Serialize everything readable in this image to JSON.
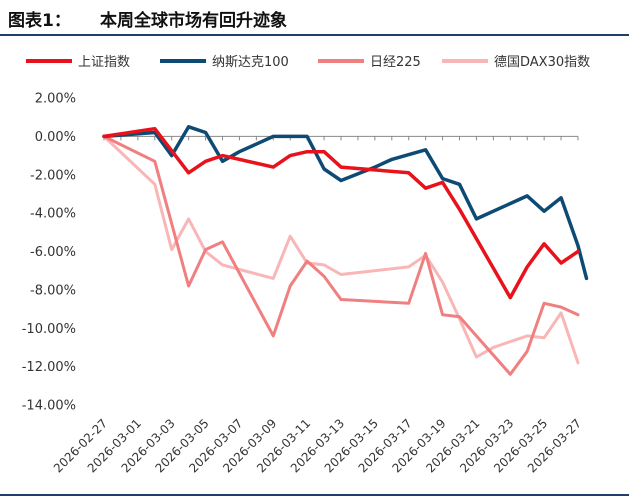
{
  "header": {
    "fig_label": "图表1：",
    "title": "本周全球市场有回升迹象"
  },
  "chart_data": {
    "type": "line",
    "title": "本周全球市场有回升迹象",
    "xlabel": "",
    "ylabel": "",
    "ylim": [
      -14,
      2
    ],
    "y_ticks": [
      2,
      0,
      -2,
      -4,
      -6,
      -8,
      -10,
      -12,
      -14
    ],
    "y_tick_labels": [
      "2.00%",
      "0.00%",
      "-2.00%",
      "-4.00%",
      "-6.00%",
      "-8.00%",
      "-10.00%",
      "-12.00%",
      "-14.00%"
    ],
    "x": [
      "2026-02-27",
      "2026-02-28",
      "2026-03-01",
      "2026-03-02",
      "2026-03-03",
      "2026-03-04",
      "2026-03-05",
      "2026-03-06",
      "2026-03-07",
      "2026-03-08",
      "2026-03-09",
      "2026-03-10",
      "2026-03-11",
      "2026-03-12",
      "2026-03-13",
      "2026-03-14",
      "2026-03-15",
      "2026-03-16",
      "2026-03-17",
      "2026-03-18",
      "2026-03-19",
      "2026-03-20",
      "2026-03-21",
      "2026-03-22",
      "2026-03-23",
      "2026-03-24",
      "2026-03-25",
      "2026-03-26",
      "2026-03-27"
    ],
    "x_tick_labels": [
      "2026-02-27",
      "2026-03-01",
      "2026-03-03",
      "2026-03-05",
      "2026-03-07",
      "2026-03-09",
      "2026-03-11",
      "2026-03-13",
      "2026-03-15",
      "2026-03-17",
      "2026-03-19",
      "2026-03-21",
      "2026-03-23",
      "2026-03-25",
      "2026-03-27"
    ],
    "legend_position": "top",
    "grid": false,
    "series": [
      {
        "name": "上证指数",
        "color": "#e8121c",
        "width": 3.5,
        "points": [
          [
            0,
            0
          ],
          [
            3,
            0.4
          ],
          [
            5,
            -1.9
          ],
          [
            6,
            -1.3
          ],
          [
            7,
            -1.0
          ],
          [
            10,
            -1.6
          ],
          [
            11,
            -1.0
          ],
          [
            12,
            -0.8
          ],
          [
            13,
            -0.8
          ],
          [
            14,
            -1.6
          ],
          [
            18,
            -1.9
          ],
          [
            19,
            -2.7
          ],
          [
            20,
            -2.4
          ],
          [
            21,
            -3.8
          ],
          [
            24,
            -8.4
          ],
          [
            25,
            -6.8
          ],
          [
            26,
            -5.6
          ],
          [
            27,
            -6.6
          ],
          [
            28,
            -6.0
          ]
        ]
      },
      {
        "name": "纳斯达克100",
        "color": "#0d4a74",
        "width": 3.5,
        "points": [
          [
            0,
            0
          ],
          [
            3,
            0.2
          ],
          [
            4,
            -1.0
          ],
          [
            5,
            0.5
          ],
          [
            6,
            0.2
          ],
          [
            7,
            -1.3
          ],
          [
            8,
            -0.8
          ],
          [
            10,
            0.0
          ],
          [
            11,
            0.0
          ],
          [
            12,
            0.0
          ],
          [
            13,
            -1.7
          ],
          [
            14,
            -2.3
          ],
          [
            16,
            -1.6
          ],
          [
            17,
            -1.2
          ],
          [
            19,
            -0.7
          ],
          [
            20,
            -2.2
          ],
          [
            21,
            -2.5
          ],
          [
            22,
            -4.3
          ],
          [
            25,
            -3.1
          ],
          [
            26,
            -3.9
          ],
          [
            27,
            -3.2
          ],
          [
            28,
            -5.7
          ],
          [
            28.5,
            -7.4
          ]
        ]
      },
      {
        "name": "日经225",
        "color": "#f07f80",
        "width": 3,
        "points": [
          [
            0,
            0
          ],
          [
            3,
            -1.3
          ],
          [
            5,
            -7.8
          ],
          [
            6,
            -5.9
          ],
          [
            7,
            -5.5
          ],
          [
            10,
            -10.4
          ],
          [
            11,
            -7.8
          ],
          [
            12,
            -6.5
          ],
          [
            13,
            -7.3
          ],
          [
            14,
            -8.5
          ],
          [
            18,
            -8.7
          ],
          [
            19,
            -6.1
          ],
          [
            20,
            -9.3
          ],
          [
            21,
            -9.4
          ],
          [
            24,
            -12.4
          ],
          [
            25,
            -11.2
          ],
          [
            26,
            -8.7
          ],
          [
            27,
            -8.9
          ],
          [
            28,
            -9.3
          ]
        ]
      },
      {
        "name": "德国DAX30指数",
        "color": "#f9b6b7",
        "width": 3,
        "points": [
          [
            0,
            0
          ],
          [
            3,
            -2.5
          ],
          [
            4,
            -5.9
          ],
          [
            5,
            -4.3
          ],
          [
            6,
            -6.0
          ],
          [
            7,
            -6.7
          ],
          [
            10,
            -7.4
          ],
          [
            11,
            -5.2
          ],
          [
            12,
            -6.6
          ],
          [
            13,
            -6.7
          ],
          [
            14,
            -7.2
          ],
          [
            18,
            -6.8
          ],
          [
            19,
            -6.2
          ],
          [
            20,
            -7.6
          ],
          [
            21,
            -9.5
          ],
          [
            22,
            -11.5
          ],
          [
            23,
            -11.0
          ],
          [
            25,
            -10.4
          ],
          [
            26,
            -10.5
          ],
          [
            27,
            -9.2
          ],
          [
            28,
            -11.8
          ]
        ]
      }
    ]
  }
}
